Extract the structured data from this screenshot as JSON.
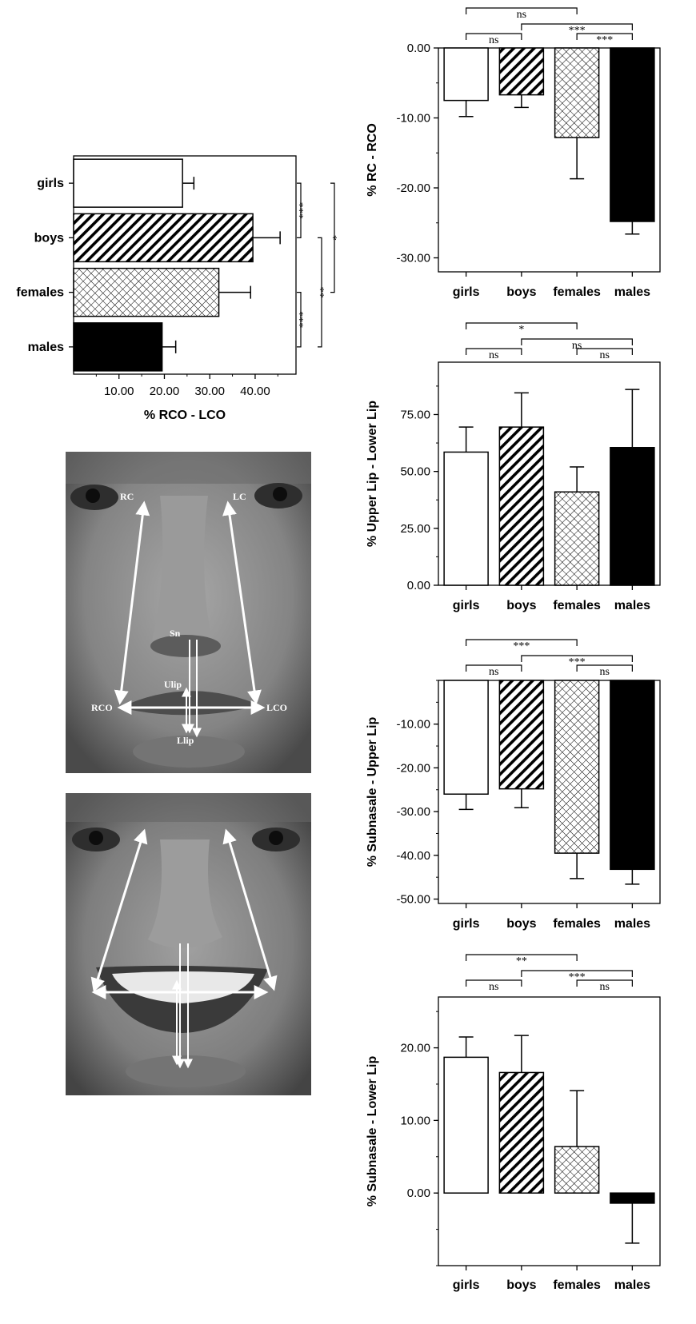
{
  "chart_data": [
    {
      "id": "rco_lco",
      "type": "bar",
      "orientation": "horizontal",
      "categories": [
        "girls",
        "boys",
        "females",
        "males"
      ],
      "values": [
        24.0,
        39.5,
        32.0,
        19.5
      ],
      "errors": [
        2.5,
        6.0,
        7.0,
        3.0
      ],
      "fills": [
        "white",
        "diagonal",
        "crosshatch",
        "black"
      ],
      "xlabel": "% RCO - LCO",
      "xlim": [
        0,
        49
      ],
      "ticks": [
        10,
        20,
        30,
        40
      ],
      "tick_labels": [
        "10.00",
        "20.00",
        "30.00",
        "40.00"
      ],
      "significance": [
        {
          "from": 0,
          "to": 1,
          "label": "***"
        },
        {
          "from": 2,
          "to": 3,
          "label": "***"
        },
        {
          "from": 1,
          "to": 3,
          "label": "**"
        },
        {
          "from": 0,
          "to": 2,
          "label": "*"
        }
      ]
    },
    {
      "id": "rc_rco",
      "type": "bar",
      "categories": [
        "girls",
        "boys",
        "females",
        "males"
      ],
      "values": [
        -7.5,
        -6.7,
        -12.8,
        -24.8
      ],
      "errors": [
        2.3,
        1.8,
        5.9,
        1.8
      ],
      "fills": [
        "white",
        "diagonal",
        "crosshatch",
        "black"
      ],
      "ylabel": "% RC - RCO",
      "ylim": [
        -32,
        0
      ],
      "ticks": [
        0,
        -10,
        -20,
        -30
      ],
      "tick_labels": [
        "0.00",
        "-10.00",
        "-20.00",
        "-30.00"
      ],
      "significance": [
        {
          "from": 0,
          "to": 1,
          "label": "ns"
        },
        {
          "from": 2,
          "to": 3,
          "label": "***"
        },
        {
          "from": 1,
          "to": 3,
          "label": "***"
        },
        {
          "from": 0,
          "to": 2,
          "label": "ns"
        }
      ]
    },
    {
      "id": "upper_lower_lip",
      "type": "bar",
      "categories": [
        "girls",
        "boys",
        "females",
        "males"
      ],
      "values": [
        58.5,
        69.5,
        41.0,
        60.5
      ],
      "errors": [
        11.0,
        15.0,
        11.0,
        25.5
      ],
      "fills": [
        "white",
        "diagonal",
        "crosshatch",
        "black"
      ],
      "ylabel": "% Upper Lip - Lower Lip",
      "ylim": [
        0,
        98
      ],
      "ticks": [
        0,
        25,
        50,
        75
      ],
      "tick_labels": [
        "0.00",
        "25.00",
        "50.00",
        "75.00"
      ],
      "significance": [
        {
          "from": 0,
          "to": 1,
          "label": "ns"
        },
        {
          "from": 2,
          "to": 3,
          "label": "ns"
        },
        {
          "from": 1,
          "to": 3,
          "label": "ns"
        },
        {
          "from": 0,
          "to": 2,
          "label": "*"
        }
      ]
    },
    {
      "id": "subnasale_upper_lip",
      "type": "bar",
      "categories": [
        "girls",
        "boys",
        "females",
        "males"
      ],
      "values": [
        -26.0,
        -24.8,
        -39.5,
        -43.2
      ],
      "errors": [
        3.5,
        4.3,
        5.8,
        3.4
      ],
      "fills": [
        "white",
        "diagonal",
        "crosshatch",
        "black"
      ],
      "ylabel": "% Subnasale - Upper Lip",
      "ylim": [
        -51,
        0
      ],
      "ticks": [
        -10,
        -20,
        -30,
        -40,
        -50
      ],
      "tick_labels": [
        "-10.00",
        "-20.00",
        "-30.00",
        "-40.00",
        "-50.00"
      ],
      "significance": [
        {
          "from": 0,
          "to": 1,
          "label": "ns"
        },
        {
          "from": 2,
          "to": 3,
          "label": "ns"
        },
        {
          "from": 1,
          "to": 3,
          "label": "***"
        },
        {
          "from": 0,
          "to": 2,
          "label": "***"
        }
      ]
    },
    {
      "id": "subnasale_lower_lip",
      "type": "bar",
      "categories": [
        "girls",
        "boys",
        "females",
        "males"
      ],
      "values": [
        18.7,
        16.6,
        6.4,
        -1.4
      ],
      "errors": [
        2.8,
        5.1,
        7.7,
        5.5
      ],
      "fills": [
        "white",
        "diagonal",
        "crosshatch",
        "black"
      ],
      "ylabel": "% Subnasale - Lower Lip",
      "ylim": [
        -10,
        27
      ],
      "ticks": [
        0,
        10,
        20
      ],
      "tick_labels": [
        "0.00",
        "10.00",
        "20.00"
      ],
      "significance": [
        {
          "from": 0,
          "to": 1,
          "label": "ns"
        },
        {
          "from": 2,
          "to": 3,
          "label": "ns"
        },
        {
          "from": 1,
          "to": 3,
          "label": "***"
        },
        {
          "from": 0,
          "to": 2,
          "label": "**"
        }
      ]
    }
  ],
  "photos": {
    "neutral_labels": {
      "rc": "RC",
      "lc": "LC",
      "sn": "Sn",
      "ulip": "Ulip",
      "rco": "RCO",
      "lco": "LCO",
      "llip": "Llip"
    }
  },
  "colors": {
    "bar_stroke": "#000000",
    "black_fill": "#000000",
    "photo_skin": "#8a8a8a",
    "annotation": "#ffffff"
  }
}
